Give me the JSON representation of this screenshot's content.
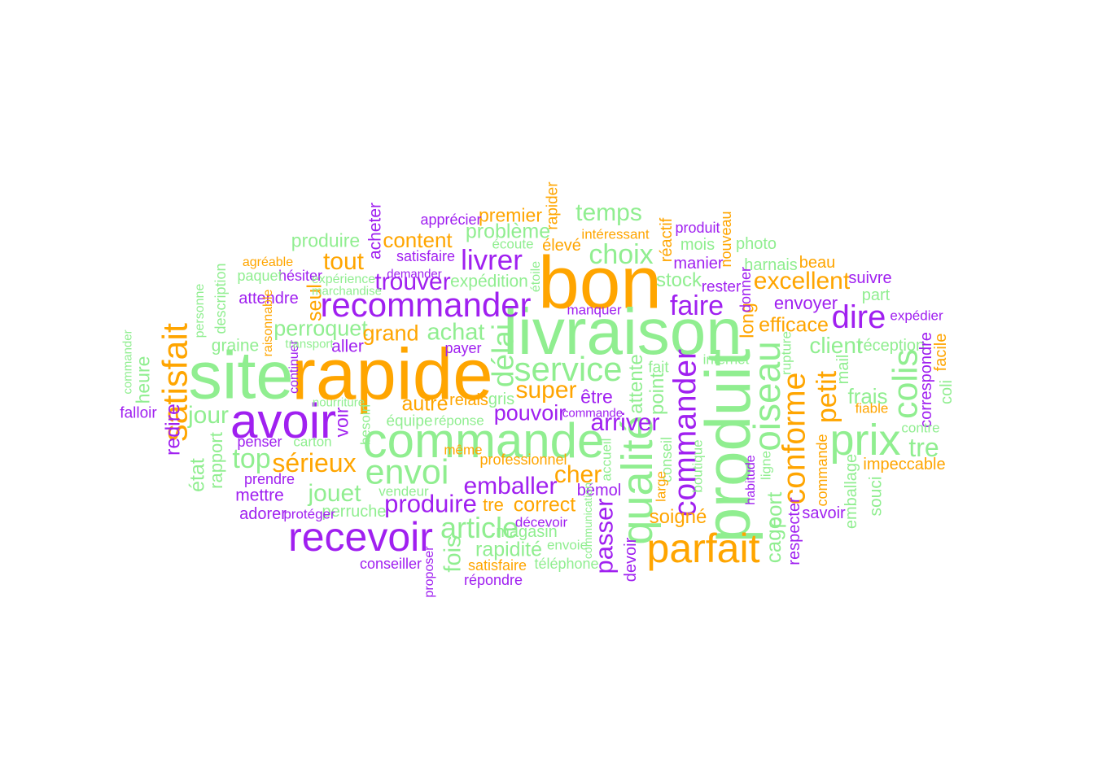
{
  "palette": {
    "green": "#90EE90",
    "orange": "#FFA500",
    "purple": "#A020F0"
  },
  "words": [
    {
      "text": "bon",
      "weight": 1.0,
      "color": "orange",
      "rot": 0
    },
    {
      "text": "rapide",
      "weight": 0.97,
      "color": "orange",
      "rot": 0
    },
    {
      "text": "site",
      "weight": 0.9,
      "color": "green",
      "rot": 0
    },
    {
      "text": "livraison",
      "weight": 0.86,
      "color": "green",
      "rot": 0
    },
    {
      "text": "produit",
      "weight": 0.84,
      "color": "green",
      "rot": -90
    },
    {
      "text": "commande",
      "weight": 0.62,
      "color": "green",
      "rot": 0
    },
    {
      "text": "avoir",
      "weight": 0.62,
      "color": "purple",
      "rot": 0
    },
    {
      "text": "qualité",
      "weight": 0.55,
      "color": "green",
      "rot": -90
    },
    {
      "text": "prix",
      "weight": 0.55,
      "color": "green",
      "rot": 0
    },
    {
      "text": "recevoir",
      "weight": 0.5,
      "color": "purple",
      "rot": 0
    },
    {
      "text": "parfait",
      "weight": 0.5,
      "color": "orange",
      "rot": 0
    },
    {
      "text": "oiseau",
      "weight": 0.45,
      "color": "green",
      "rot": -90
    },
    {
      "text": "satisfait",
      "weight": 0.42,
      "color": "orange",
      "rot": -90
    },
    {
      "text": "colis",
      "weight": 0.42,
      "color": "green",
      "rot": -90
    },
    {
      "text": "envoi",
      "weight": 0.42,
      "color": "green",
      "rot": 0
    },
    {
      "text": "service",
      "weight": 0.4,
      "color": "green",
      "rot": 0
    },
    {
      "text": "recommander",
      "weight": 0.4,
      "color": "purple",
      "rot": 0
    },
    {
      "text": "dire",
      "weight": 0.38,
      "color": "purple",
      "rot": 0
    },
    {
      "text": "commander",
      "weight": 0.36,
      "color": "purple",
      "rot": -90
    },
    {
      "text": "conforme",
      "weight": 0.36,
      "color": "orange",
      "rot": -90
    },
    {
      "text": "délai",
      "weight": 0.34,
      "color": "green",
      "rot": -90
    },
    {
      "text": "article",
      "weight": 0.33,
      "color": "green",
      "rot": 0
    },
    {
      "text": "livrer",
      "weight": 0.32,
      "color": "purple",
      "rot": 0
    },
    {
      "text": "choix",
      "weight": 0.31,
      "color": "green",
      "rot": 0
    },
    {
      "text": "faire",
      "weight": 0.3,
      "color": "purple",
      "rot": 0
    },
    {
      "text": "petit",
      "weight": 0.3,
      "color": "orange",
      "rot": -90
    },
    {
      "text": "top",
      "weight": 0.3,
      "color": "green",
      "rot": 0
    },
    {
      "text": "sérieux",
      "weight": 0.28,
      "color": "orange",
      "rot": 0
    },
    {
      "text": "tre",
      "weight": 0.28,
      "color": "green",
      "rot": 0
    },
    {
      "text": "produire",
      "weight": 0.27,
      "color": "purple",
      "rot": 0
    },
    {
      "text": "passer",
      "weight": 0.27,
      "color": "purple",
      "rot": -90
    },
    {
      "text": "temps",
      "weight": 0.26,
      "color": "green",
      "rot": 0
    },
    {
      "text": "trouver",
      "weight": 0.26,
      "color": "purple",
      "rot": 0
    },
    {
      "text": "tout",
      "weight": 0.26,
      "color": "orange",
      "rot": 0
    },
    {
      "text": "arriver",
      "weight": 0.26,
      "color": "purple",
      "rot": 0
    },
    {
      "text": "super",
      "weight": 0.26,
      "color": "orange",
      "rot": 0
    },
    {
      "text": "excellent",
      "weight": 0.25,
      "color": "orange",
      "rot": 0
    },
    {
      "text": "emballer",
      "weight": 0.25,
      "color": "purple",
      "rot": 0
    },
    {
      "text": "jour",
      "weight": 0.25,
      "color": "green",
      "rot": 0
    },
    {
      "text": "jouet",
      "weight": 0.25,
      "color": "green",
      "rot": 0
    },
    {
      "text": "cher",
      "weight": 0.25,
      "color": "orange",
      "rot": 0
    },
    {
      "text": "achat",
      "weight": 0.24,
      "color": "green",
      "rot": 0
    },
    {
      "text": "fois",
      "weight": 0.24,
      "color": "green",
      "rot": -90
    },
    {
      "text": "client",
      "weight": 0.23,
      "color": "green",
      "rot": 0
    },
    {
      "text": "pouvoir",
      "weight": 0.22,
      "color": "purple",
      "rot": 0
    },
    {
      "text": "perroquet",
      "weight": 0.22,
      "color": "green",
      "rot": 0
    },
    {
      "text": "grand",
      "weight": 0.22,
      "color": "orange",
      "rot": 0
    },
    {
      "text": "content",
      "weight": 0.21,
      "color": "orange",
      "rot": 0
    },
    {
      "text": "frais",
      "weight": 0.21,
      "color": "green",
      "rot": 0
    },
    {
      "text": "cage",
      "weight": 0.21,
      "color": "green",
      "rot": -90
    },
    {
      "text": "port",
      "weight": 0.21,
      "color": "green",
      "rot": -90
    },
    {
      "text": "autre",
      "weight": 0.2,
      "color": "orange",
      "rot": 0
    },
    {
      "text": "rapidité",
      "weight": 0.2,
      "color": "green",
      "rot": 0
    },
    {
      "text": "correct",
      "weight": 0.2,
      "color": "orange",
      "rot": 0
    },
    {
      "text": "problème",
      "weight": 0.19,
      "color": "green",
      "rot": 0
    },
    {
      "text": "redire",
      "weight": 0.19,
      "color": "purple",
      "rot": -90
    },
    {
      "text": "état",
      "weight": 0.19,
      "color": "green",
      "rot": -90
    },
    {
      "text": "efficace",
      "weight": 0.19,
      "color": "orange",
      "rot": 0
    },
    {
      "text": "seul",
      "weight": 0.19,
      "color": "orange",
      "rot": -90
    },
    {
      "text": "soigné",
      "weight": 0.18,
      "color": "orange",
      "rot": 0
    },
    {
      "text": "stock",
      "weight": 0.18,
      "color": "green",
      "rot": 0
    },
    {
      "text": "attente",
      "weight": 0.18,
      "color": "green",
      "rot": -90
    },
    {
      "text": "point",
      "weight": 0.18,
      "color": "green",
      "rot": -90
    },
    {
      "text": "être",
      "weight": 0.17,
      "color": "purple",
      "rot": 0
    },
    {
      "text": "premier",
      "weight": 0.17,
      "color": "orange",
      "rot": 0
    },
    {
      "text": "produire",
      "weight": 0.17,
      "color": "green",
      "rot": 0
    },
    {
      "text": "voir",
      "weight": 0.17,
      "color": "purple",
      "rot": -90
    },
    {
      "text": "heure",
      "weight": 0.17,
      "color": "green",
      "rot": -90
    },
    {
      "text": "long",
      "weight": 0.17,
      "color": "orange",
      "rot": -90
    },
    {
      "text": "envoyer",
      "weight": 0.16,
      "color": "purple",
      "rot": 0
    },
    {
      "text": "rapport",
      "weight": 0.16,
      "color": "green",
      "rot": -90
    },
    {
      "text": "tre",
      "weight": 0.16,
      "color": "orange",
      "rot": 0
    },
    {
      "text": "acheter",
      "weight": 0.15,
      "color": "purple",
      "rot": -90
    },
    {
      "text": "mettre",
      "weight": 0.15,
      "color": "purple",
      "rot": 0
    },
    {
      "text": "aller",
      "weight": 0.15,
      "color": "purple",
      "rot": 0
    },
    {
      "text": "graine",
      "weight": 0.15,
      "color": "green",
      "rot": 0
    },
    {
      "text": "expédition",
      "weight": 0.15,
      "color": "green",
      "rot": 0
    },
    {
      "text": "souci",
      "weight": 0.15,
      "color": "green",
      "rot": -90
    },
    {
      "text": "emballage",
      "weight": 0.14,
      "color": "green",
      "rot": -90
    },
    {
      "text": "part",
      "weight": 0.14,
      "color": "green",
      "rot": 0
    },
    {
      "text": "suivre",
      "weight": 0.14,
      "color": "purple",
      "rot": 0
    },
    {
      "text": "magasin",
      "weight": 0.14,
      "color": "green",
      "rot": 0
    },
    {
      "text": "mois",
      "weight": 0.14,
      "color": "green",
      "rot": 0
    },
    {
      "text": "manier",
      "weight": 0.14,
      "color": "purple",
      "rot": 0
    },
    {
      "text": "savoir",
      "weight": 0.14,
      "color": "purple",
      "rot": 0
    },
    {
      "text": "harnais",
      "weight": 0.14,
      "color": "green",
      "rot": 0
    },
    {
      "text": "beau",
      "weight": 0.14,
      "color": "orange",
      "rot": 0
    },
    {
      "text": "impeccable",
      "weight": 0.14,
      "color": "orange",
      "rot": 0
    },
    {
      "text": "mail",
      "weight": 0.14,
      "color": "green",
      "rot": -90
    },
    {
      "text": "réception",
      "weight": 0.14,
      "color": "green",
      "rot": 0
    },
    {
      "text": "correspondre",
      "weight": 0.14,
      "color": "purple",
      "rot": -90
    },
    {
      "text": "facile",
      "weight": 0.14,
      "color": "orange",
      "rot": -90
    },
    {
      "text": "coli",
      "weight": 0.14,
      "color": "green",
      "rot": -90
    },
    {
      "text": "devoir",
      "weight": 0.14,
      "color": "purple",
      "rot": -90
    },
    {
      "text": "respecter",
      "weight": 0.13,
      "color": "purple",
      "rot": -90
    },
    {
      "text": "photo",
      "weight": 0.13,
      "color": "green",
      "rot": 0
    },
    {
      "text": "attendre",
      "weight": 0.13,
      "color": "purple",
      "rot": 0
    },
    {
      "text": "bémol",
      "weight": 0.13,
      "color": "purple",
      "rot": 0
    },
    {
      "text": "adorer",
      "weight": 0.13,
      "color": "purple",
      "rot": 0
    },
    {
      "text": "perruche",
      "weight": 0.13,
      "color": "green",
      "rot": 0
    },
    {
      "text": "gris",
      "weight": 0.13,
      "color": "green",
      "rot": 0
    },
    {
      "text": "relais",
      "weight": 0.13,
      "color": "orange",
      "rot": 0
    },
    {
      "text": "élevé",
      "weight": 0.13,
      "color": "orange",
      "rot": 0
    },
    {
      "text": "réactif",
      "weight": 0.13,
      "color": "orange",
      "rot": -90
    },
    {
      "text": "rester",
      "weight": 0.12,
      "color": "purple",
      "rot": 0
    },
    {
      "text": "fait",
      "weight": 0.12,
      "color": "green",
      "rot": 0
    },
    {
      "text": "falloir",
      "weight": 0.12,
      "color": "purple",
      "rot": 0
    },
    {
      "text": "équipe",
      "weight": 0.12,
      "color": "green",
      "rot": 0
    },
    {
      "text": "payer",
      "weight": 0.11,
      "color": "purple",
      "rot": 0
    },
    {
      "text": "conseiller",
      "weight": 0.11,
      "color": "purple",
      "rot": 0
    },
    {
      "text": "téléphone",
      "weight": 0.11,
      "color": "green",
      "rot": 0
    },
    {
      "text": "satisfaire",
      "weight": 0.11,
      "color": "purple",
      "rot": 0
    },
    {
      "text": "hésiter",
      "weight": 0.11,
      "color": "purple",
      "rot": 0
    },
    {
      "text": "prendre",
      "weight": 0.11,
      "color": "purple",
      "rot": 0
    },
    {
      "text": "penser",
      "weight": 0.11,
      "color": "purple",
      "rot": 0
    },
    {
      "text": "professionnel",
      "weight": 0.11,
      "color": "orange",
      "rot": 0
    },
    {
      "text": "répondre",
      "weight": 0.11,
      "color": "purple",
      "rot": 0
    },
    {
      "text": "produit",
      "weight": 0.11,
      "color": "purple",
      "rot": 0
    },
    {
      "text": "apprécier",
      "weight": 0.11,
      "color": "purple",
      "rot": 0
    },
    {
      "text": "satisfaire",
      "weight": 0.11,
      "color": "orange",
      "rot": 0
    },
    {
      "text": "paquet",
      "weight": 0.11,
      "color": "green",
      "rot": 0
    },
    {
      "text": "vendeur",
      "weight": 0.1,
      "color": "green",
      "rot": 0
    },
    {
      "text": "même",
      "weight": 0.1,
      "color": "orange",
      "rot": 0
    },
    {
      "text": "réponse",
      "weight": 0.1,
      "color": "green",
      "rot": 0
    },
    {
      "text": "écoute",
      "weight": 0.1,
      "color": "green",
      "rot": 0
    },
    {
      "text": "expédier",
      "weight": 0.1,
      "color": "purple",
      "rot": 0
    },
    {
      "text": "décevoir",
      "weight": 0.1,
      "color": "purple",
      "rot": 0
    },
    {
      "text": "envoie",
      "weight": 0.1,
      "color": "green",
      "rot": 0
    },
    {
      "text": "contre",
      "weight": 0.1,
      "color": "green",
      "rot": 0
    },
    {
      "text": "fiable",
      "weight": 0.1,
      "color": "orange",
      "rot": 0
    },
    {
      "text": "carton",
      "weight": 0.1,
      "color": "green",
      "rot": 0
    },
    {
      "text": "intéressant",
      "weight": 0.1,
      "color": "orange",
      "rot": 0
    },
    {
      "text": "internet",
      "weight": 0.1,
      "color": "green",
      "rot": 0
    },
    {
      "text": "manquer",
      "weight": 0.1,
      "color": "purple",
      "rot": 0
    },
    {
      "text": "protéger",
      "weight": 0.1,
      "color": "purple",
      "rot": 0
    },
    {
      "text": "rapider",
      "weight": 0.12,
      "color": "orange",
      "rot": -90
    },
    {
      "text": "description",
      "weight": 0.11,
      "color": "green",
      "rot": -90
    },
    {
      "text": "besoin",
      "weight": 0.1,
      "color": "green",
      "rot": -90
    },
    {
      "text": "accueil",
      "weight": 0.1,
      "color": "green",
      "rot": -90
    },
    {
      "text": "conseil",
      "weight": 0.11,
      "color": "green",
      "rot": -90
    },
    {
      "text": "large",
      "weight": 0.1,
      "color": "orange",
      "rot": -90
    },
    {
      "text": "boutique",
      "weight": 0.1,
      "color": "green",
      "rot": -90
    },
    {
      "text": "commande",
      "weight": 0.11,
      "color": "orange",
      "rot": -90
    },
    {
      "text": "nouveau",
      "weight": 0.11,
      "color": "orange",
      "rot": -90
    },
    {
      "text": "donner",
      "weight": 0.11,
      "color": "purple",
      "rot": -90
    },
    {
      "text": "rupture",
      "weight": 0.1,
      "color": "green",
      "rot": -90
    },
    {
      "text": "ligne",
      "weight": 0.1,
      "color": "green",
      "rot": -90
    },
    {
      "text": "habitude",
      "weight": 0.09,
      "color": "purple",
      "rot": -90
    },
    {
      "text": "étoile",
      "weight": 0.09,
      "color": "green",
      "rot": -90
    },
    {
      "text": "proposer",
      "weight": 0.09,
      "color": "purple",
      "rot": -90
    },
    {
      "text": "continuer",
      "weight": 0.09,
      "color": "purple",
      "rot": -90
    },
    {
      "text": "raisonnable",
      "weight": 0.08,
      "color": "orange",
      "rot": -90
    },
    {
      "text": "personne",
      "weight": 0.08,
      "color": "green",
      "rot": -90
    },
    {
      "text": "commander",
      "weight": 0.07,
      "color": "green",
      "rot": -90
    },
    {
      "text": "communication",
      "weight": 0.06,
      "color": "green",
      "rot": -90
    },
    {
      "text": "agréable",
      "weight": 0.08,
      "color": "orange",
      "rot": 0
    },
    {
      "text": "expérience",
      "weight": 0.08,
      "color": "green",
      "rot": 0
    },
    {
      "text": "marchandise",
      "weight": 0.07,
      "color": "green",
      "rot": 0
    },
    {
      "text": "transport",
      "weight": 0.07,
      "color": "green",
      "rot": 0
    },
    {
      "text": "nourriture",
      "weight": 0.07,
      "color": "green",
      "rot": 0
    },
    {
      "text": "demander",
      "weight": 0.07,
      "color": "purple",
      "rot": 0
    },
    {
      "text": "commande",
      "weight": 0.07,
      "color": "purple",
      "rot": 0
    }
  ]
}
